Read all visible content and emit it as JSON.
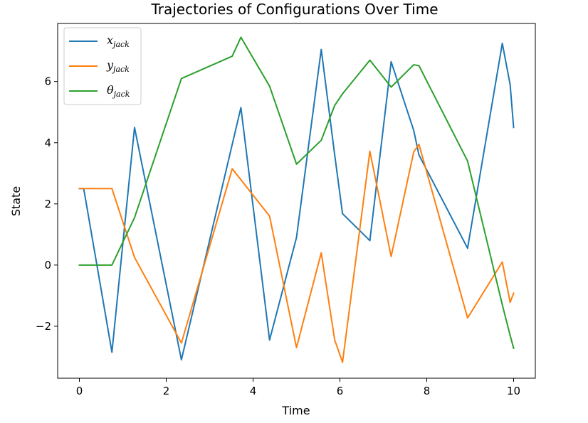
{
  "chart_data": {
    "type": "line",
    "title": "Trajectories of Configurations Over Time",
    "xlabel": "Time",
    "ylabel": "State",
    "xlim": [
      -0.5,
      10.5
    ],
    "ylim": [
      -3.7,
      7.9
    ],
    "x_ticks": [
      0,
      2,
      4,
      6,
      8,
      10
    ],
    "y_ticks": [
      -2,
      0,
      2,
      4,
      6
    ],
    "x_tick_labels": [
      "0",
      "2",
      "4",
      "6",
      "8",
      "10"
    ],
    "y_tick_labels": [
      "−2",
      "0",
      "2",
      "4",
      "6"
    ],
    "grid": false,
    "legend_position": "top-left",
    "series": [
      {
        "name_main": "x",
        "name_sub": "jack",
        "color": "#1f77b4",
        "x": [
          0,
          0.1,
          0.75,
          1.27,
          2.35,
          3.72,
          4.38,
          5.0,
          5.57,
          5.88,
          6.06,
          6.69,
          7.18,
          7.7,
          7.82,
          8.94,
          9.74,
          9.92,
          10.0
        ],
        "y": [
          2.5,
          2.5,
          -2.85,
          4.5,
          -3.1,
          5.15,
          -2.45,
          0.9,
          7.05,
          3.6,
          1.68,
          0.8,
          6.65,
          4.4,
          3.6,
          0.55,
          7.25,
          5.9,
          4.5
        ]
      },
      {
        "name_main": "y",
        "name_sub": "jack",
        "color": "#ff7f0e",
        "x": [
          0,
          0.1,
          0.75,
          1.27,
          2.35,
          3.52,
          4.38,
          5.0,
          5.57,
          5.88,
          6.06,
          6.69,
          7.18,
          7.7,
          7.82,
          8.94,
          9.74,
          9.92,
          10.0
        ],
        "y": [
          2.5,
          2.5,
          2.5,
          0.25,
          -2.55,
          3.15,
          1.6,
          -2.7,
          0.4,
          -2.45,
          -3.18,
          3.72,
          0.28,
          3.7,
          3.95,
          -1.73,
          0.1,
          -1.22,
          -0.92
        ]
      },
      {
        "name_main": "θ",
        "name_sub": "jack",
        "color": "#2ca02c",
        "x": [
          0,
          0.1,
          0.75,
          1.27,
          2.35,
          3.52,
          3.72,
          4.38,
          5.0,
          5.57,
          5.88,
          6.06,
          6.69,
          7.18,
          7.7,
          7.82,
          8.94,
          9.74,
          9.92,
          10.0
        ],
        "y": [
          0,
          0,
          0,
          1.55,
          6.1,
          6.83,
          7.45,
          5.85,
          3.3,
          4.08,
          5.22,
          5.6,
          6.7,
          5.82,
          6.55,
          6.52,
          3.4,
          -1.3,
          -2.3,
          -2.72
        ]
      }
    ]
  }
}
